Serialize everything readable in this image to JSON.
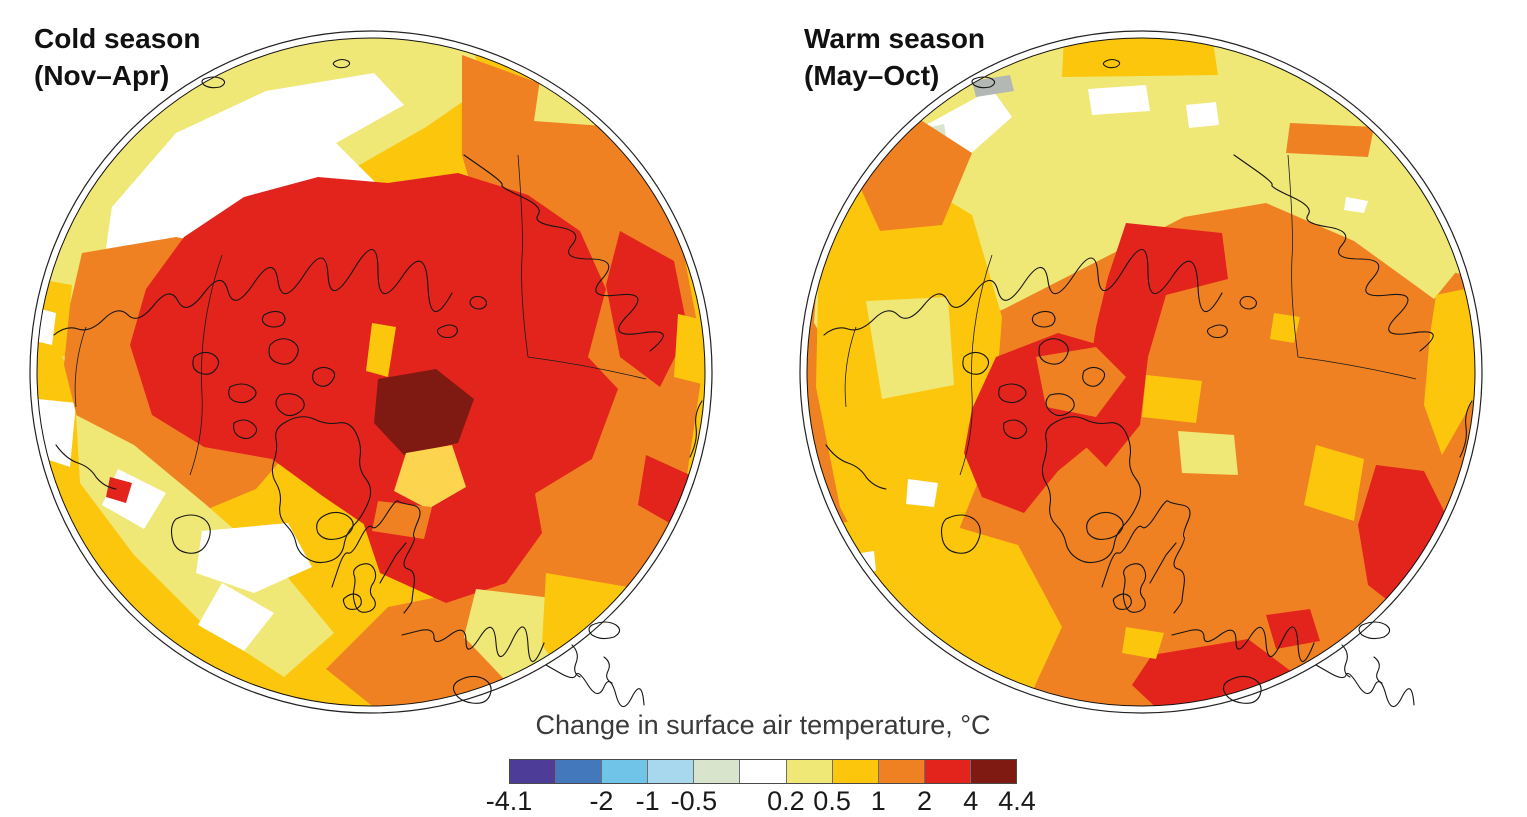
{
  "figure": {
    "background": "#ffffff",
    "caption": "Change in surface air temperature, °C"
  },
  "maps": [
    {
      "id": "cold",
      "title_line1": "Cold season",
      "title_line2": "(Nov–Apr)"
    },
    {
      "id": "warm",
      "title_line1": "Warm season",
      "title_line2": "(May–Oct)"
    }
  ],
  "palette": {
    "indigo": "#4e3d98",
    "blue": "#4478bd",
    "skyblue": "#70c4e8",
    "lightblue": "#a8d8ee",
    "palegreen": "#d8e4cb",
    "white": "#ffffff",
    "paleyellow": "#efe776",
    "yellow": "#fcc60d",
    "gold_light": "#fdd44e",
    "orange": "#f08122",
    "red": "#e2241d",
    "darkred": "#7e1a12",
    "gray": "#b3b8b4"
  },
  "colorbar": {
    "label": "Change in surface air temperature, °C",
    "segment_colors": [
      "#4e3d98",
      "#4478bd",
      "#70c4e8",
      "#a8d8ee",
      "#d8e4cb",
      "#ffffff",
      "#efe776",
      "#fcc60d",
      "#f08122",
      "#e2241d",
      "#7e1a12"
    ],
    "ticks": [
      {
        "label": "-4.1",
        "pos_pct": 0
      },
      {
        "label": "-2",
        "pos_pct": 18.2
      },
      {
        "label": "-1",
        "pos_pct": 27.3
      },
      {
        "label": "-0.5",
        "pos_pct": 36.4
      },
      {
        "label": "0.2",
        "pos_pct": 54.5
      },
      {
        "label": "0.5",
        "pos_pct": 63.6
      },
      {
        "label": "1",
        "pos_pct": 72.7
      },
      {
        "label": "2",
        "pos_pct": 81.8
      },
      {
        "label": "4",
        "pos_pct": 90.9
      },
      {
        "label": "4.4",
        "pos_pct": 100
      }
    ]
  },
  "chart_data": {
    "type": "heatmap",
    "subtype": "paired polar maps, Northern Hemisphere",
    "title": "Change in surface air temperature, °C",
    "colorbar": {
      "range": [
        -4.1,
        4.4
      ],
      "tick_labels": [
        "-4.1",
        "-2",
        "-1",
        "-0.5",
        "0.2",
        "0.5",
        "1",
        "2",
        "4",
        "4.4"
      ],
      "segment_colors": [
        "#4e3d98",
        "#4478bd",
        "#70c4e8",
        "#a8d8ee",
        "#d8e4cb",
        "#ffffff",
        "#efe776",
        "#fcc60d",
        "#f08122",
        "#e2241d",
        "#7e1a12"
      ]
    },
    "panels": [
      {
        "title": "Cold season (Nov–Apr)",
        "features": [
          "Dark red cell (> +4 °C) adjacent to the North Pole",
          "Large red region (+2 to +4 °C) over the central Arctic Ocean, Canadian Arctic, Barents/Kara seas and Scandinavia",
          "Orange (+1 to +2 °C) over Siberia, Alaska, northern Canada and eastern Europe",
          "Golden yellow (+0.5 to +1 °C) over mid-latitude North Atlantic and Mediterranean",
          "Pale yellow and white (−0.2 to +0.5 °C) over the North Pacific and northwest Atlantic"
        ]
      },
      {
        "title": "Warm season (May–Oct)",
        "features": [
          "Red (+2 to +4 °C) over the Canadian Arctic Archipelago, Baffin Bay and a strip toward the pole",
          "Red patches over the western Mediterranean / North Africa and near the Caspian sector at right",
          "Orange (+1 to +2 °C) over most continents and the Arctic Ocean",
          "Golden yellow (+0.5 to +1 °C) over the North Atlantic and Alaska sector",
          "Pale yellow, white, small gray and pale-green spots (≤ +0.5 °C) across the North Pacific sector"
        ]
      }
    ]
  }
}
